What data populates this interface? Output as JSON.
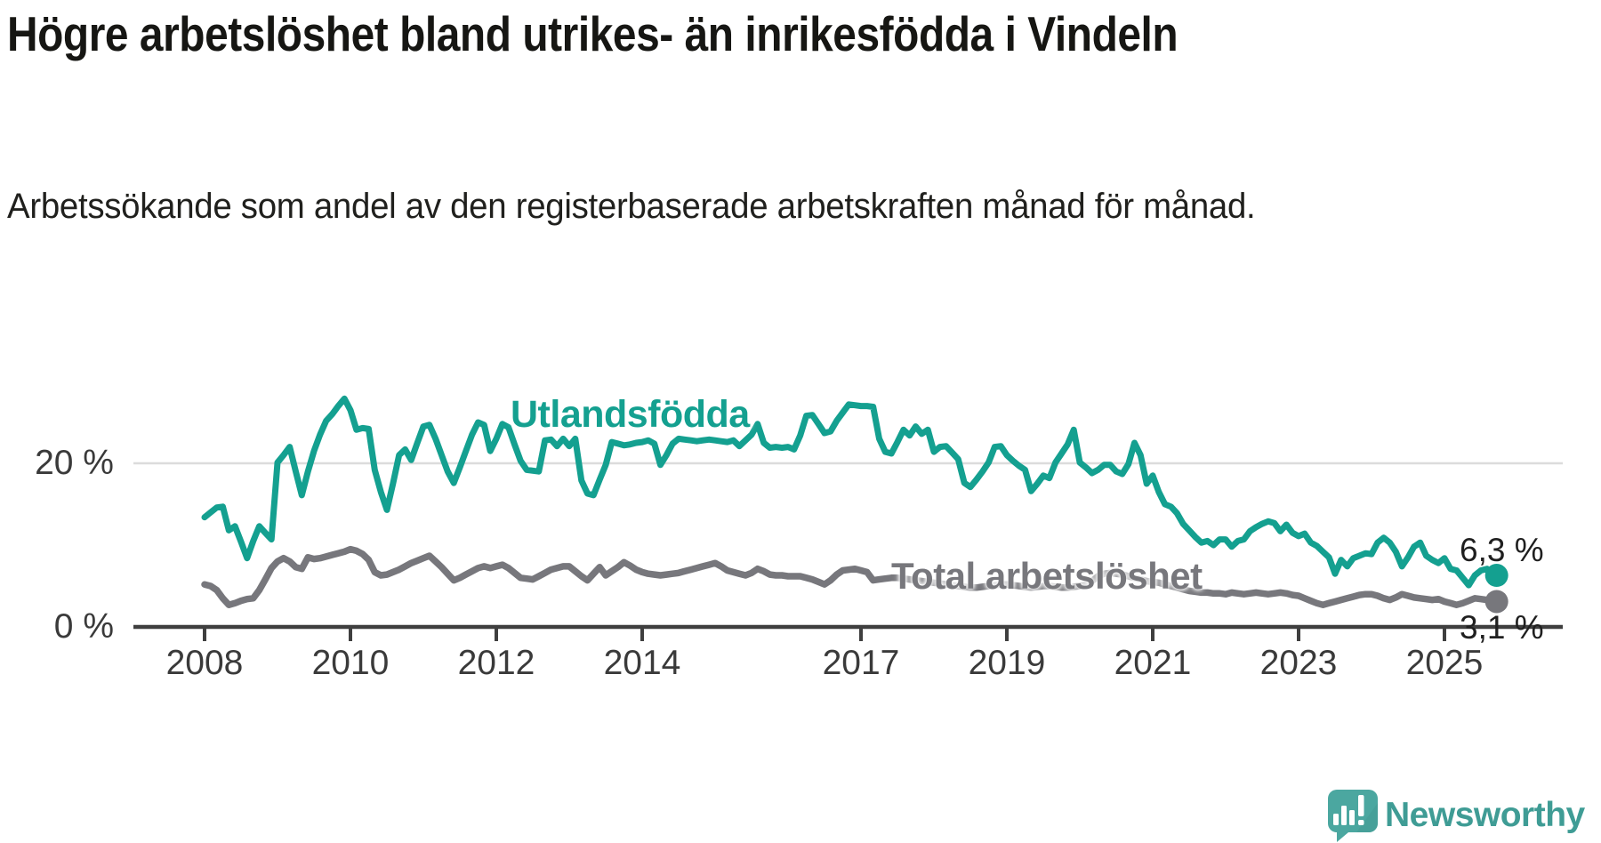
{
  "title": "Högre arbetslöshet bland utrikes- än inrikesfödda i Vindeln",
  "subtitle": "Arbetssökande som andel av den registerbaserade arbetskraften månad för månad.",
  "chart_data": {
    "type": "line",
    "title": "Högre arbetslöshet bland utrikes- än inrikesfödda i Vindeln",
    "subtitle": "Arbetssökande som andel av den registerbaserade arbetskraften månad för månad.",
    "unit": "percent",
    "frequency": "monthly",
    "x_start": "2008-01",
    "x_end": "2025-09",
    "grid": "single horizontal gridline at 20 %",
    "legend_position": "inline labels on lines",
    "ylim": [
      0,
      30
    ],
    "x_ticks": [
      {
        "label": "2008",
        "year": 2008
      },
      {
        "label": "2010",
        "year": 2010
      },
      {
        "label": "2012",
        "year": 2012
      },
      {
        "label": "2014",
        "year": 2014
      },
      {
        "label": "2017",
        "year": 2017
      },
      {
        "label": "2019",
        "year": 2019
      },
      {
        "label": "2021",
        "year": 2021
      },
      {
        "label": "2023",
        "year": 2023
      },
      {
        "label": "2025",
        "year": 2025
      }
    ],
    "y_ticks": [
      {
        "label": "0 %",
        "value": 0
      },
      {
        "label": "20 %",
        "value": 20
      }
    ],
    "series": [
      {
        "name": "Utlandsfödda",
        "color": "#14a090",
        "end_label": "6,3 %",
        "end_value": 6.3,
        "values": [
          13.4,
          14.0,
          14.6,
          14.7,
          11.8,
          12.3,
          10.4,
          8.4,
          10.5,
          12.3,
          11.5,
          10.7,
          20.1,
          21.0,
          22.0,
          19.0,
          16.1,
          19.0,
          21.5,
          23.5,
          25.2,
          26.0,
          27.0,
          27.9,
          26.5,
          24.1,
          24.3,
          24.2,
          19.2,
          16.5,
          14.3,
          17.5,
          21.0,
          21.7,
          20.4,
          22.5,
          24.5,
          24.7,
          23.0,
          21.0,
          19.0,
          17.6,
          19.5,
          21.5,
          23.5,
          25.0,
          24.7,
          21.5,
          23.0,
          24.8,
          24.4,
          22.3,
          20.3,
          19.2,
          19.1,
          19.0,
          22.8,
          22.9,
          22.1,
          23.0,
          22.1,
          23.0,
          17.9,
          16.3,
          16.1,
          18.0,
          19.8,
          22.6,
          22.4,
          22.2,
          22.3,
          22.5,
          22.6,
          22.8,
          22.4,
          19.8,
          21.0,
          22.4,
          23.0,
          22.9,
          22.8,
          22.7,
          22.8,
          22.9,
          22.8,
          22.7,
          22.6,
          22.8,
          22.1,
          22.8,
          23.5,
          24.8,
          22.5,
          21.9,
          22.0,
          21.9,
          22.0,
          21.7,
          23.4,
          25.8,
          25.9,
          24.8,
          23.7,
          23.9,
          25.2,
          26.2,
          27.2,
          27.1,
          27.0,
          27.0,
          26.9,
          23.0,
          21.4,
          21.2,
          22.6,
          24.1,
          23.4,
          24.5,
          23.6,
          24.1,
          21.4,
          22.0,
          22.1,
          21.3,
          20.5,
          17.6,
          17.1,
          18.0,
          19.0,
          20.1,
          22.0,
          22.1,
          21.0,
          20.3,
          19.7,
          19.2,
          16.6,
          17.5,
          18.5,
          18.2,
          20.1,
          21.2,
          22.3,
          24.1,
          20.1,
          19.5,
          18.8,
          19.2,
          19.8,
          19.8,
          19.0,
          18.7,
          19.9,
          22.5,
          21.0,
          17.5,
          18.5,
          16.5,
          15.0,
          14.7,
          13.9,
          12.6,
          11.8,
          11.0,
          10.3,
          10.5,
          10.0,
          10.7,
          10.7,
          9.8,
          10.5,
          10.7,
          11.7,
          12.2,
          12.6,
          12.9,
          12.7,
          11.7,
          12.5,
          11.5,
          11.1,
          11.4,
          10.3,
          9.9,
          9.2,
          8.5,
          6.5,
          8.2,
          7.4,
          8.4,
          8.7,
          9.0,
          8.9,
          10.3,
          10.9,
          10.3,
          9.2,
          7.4,
          8.5,
          9.8,
          10.3,
          8.7,
          8.2,
          7.8,
          8.4,
          7.1,
          6.9,
          6.0,
          5.1,
          6.3,
          6.9,
          7.1,
          6.3
        ]
      },
      {
        "name": "Total arbetslöshet",
        "color": "#77777c",
        "end_label": "3,1 %",
        "end_value": 3.1,
        "values": [
          5.2,
          5.0,
          4.5,
          3.5,
          2.7,
          2.9,
          3.2,
          3.4,
          3.5,
          4.5,
          5.8,
          7.2,
          8.0,
          8.4,
          8.0,
          7.3,
          7.1,
          8.5,
          8.3,
          8.4,
          8.6,
          8.8,
          9.0,
          9.2,
          9.5,
          9.3,
          8.9,
          8.2,
          6.7,
          6.3,
          6.4,
          6.7,
          7.0,
          7.4,
          7.8,
          8.1,
          8.4,
          8.7,
          8.0,
          7.3,
          6.5,
          5.7,
          6.0,
          6.4,
          6.8,
          7.2,
          7.4,
          7.2,
          7.4,
          7.6,
          7.2,
          6.6,
          6.0,
          5.9,
          5.8,
          6.2,
          6.6,
          7.0,
          7.2,
          7.4,
          7.4,
          6.8,
          6.2,
          5.7,
          6.5,
          7.3,
          6.3,
          6.8,
          7.3,
          7.9,
          7.5,
          7.0,
          6.7,
          6.5,
          6.4,
          6.3,
          6.4,
          6.5,
          6.6,
          6.8,
          7.0,
          7.2,
          7.4,
          7.6,
          7.8,
          7.4,
          6.9,
          6.7,
          6.5,
          6.3,
          6.6,
          7.1,
          6.8,
          6.4,
          6.3,
          6.3,
          6.2,
          6.2,
          6.2,
          6.0,
          5.8,
          5.5,
          5.2,
          5.7,
          6.4,
          6.9,
          7.0,
          7.1,
          6.9,
          6.7,
          5.7,
          5.8,
          5.9,
          6.0,
          6.0,
          5.9,
          5.8,
          5.7,
          5.6,
          5.5,
          5.4,
          5.3,
          5.2,
          5.1,
          5.0,
          4.9,
          4.8,
          4.8,
          4.9,
          5.0,
          5.1,
          5.2,
          5.2,
          5.1,
          5.0,
          4.9,
          4.8,
          4.9,
          5.0,
          5.0,
          4.9,
          4.8,
          4.8,
          4.9,
          5.0,
          5.2,
          5.6,
          6.2,
          6.5,
          6.6,
          6.5,
          6.4,
          6.2,
          6.0,
          5.8,
          5.6,
          5.5,
          5.4,
          5.2,
          5.0,
          4.8,
          4.6,
          4.4,
          4.3,
          4.2,
          4.2,
          4.1,
          4.1,
          4.0,
          4.2,
          4.1,
          4.0,
          4.1,
          4.2,
          4.1,
          4.0,
          4.1,
          4.2,
          4.1,
          3.9,
          3.8,
          3.5,
          3.2,
          2.9,
          2.7,
          2.9,
          3.1,
          3.3,
          3.5,
          3.7,
          3.9,
          4.0,
          4.0,
          3.8,
          3.5,
          3.3,
          3.6,
          4.0,
          3.8,
          3.6,
          3.5,
          3.4,
          3.3,
          3.4,
          3.1,
          2.9,
          2.7,
          2.9,
          3.2,
          3.5,
          3.4,
          3.3,
          3.1
        ]
      }
    ]
  },
  "colors": {
    "accent_teal": "#14a090",
    "line_gray": "#77777c",
    "axis": "#3f3f3f",
    "gridline": "#dcdcdc",
    "text": "#1a1a1a"
  },
  "branding": {
    "logo_text": "Newsworthy",
    "logo_text_color": "#3f9c95",
    "logo_icon_color": "#4ba7a0"
  }
}
